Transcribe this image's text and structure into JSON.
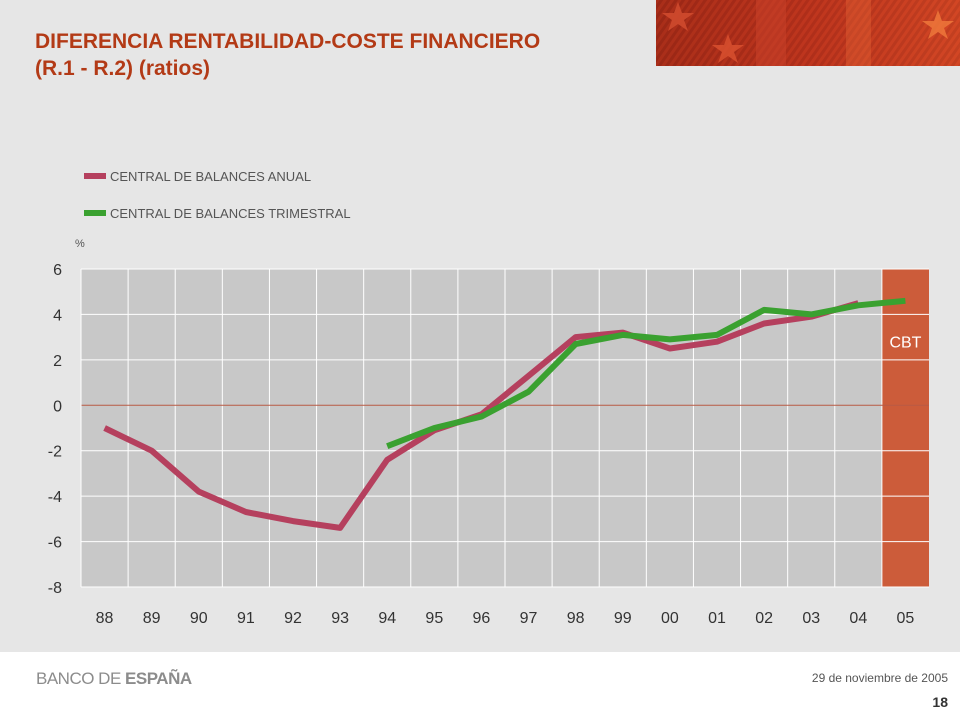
{
  "title_line1": "DIFERENCIA RENTABILIDAD-COSTE FINANCIERO",
  "title_line2": "(R.1 - R.2) (ratios)",
  "footer": {
    "logo_light": "BANCO DE ",
    "logo_bold": "ESPAÑA",
    "date": "29 de noviembre de 2005",
    "page": "18"
  },
  "chart_data": {
    "type": "line",
    "unit_label": "%",
    "categories": [
      "88",
      "89",
      "90",
      "91",
      "92",
      "93",
      "94",
      "95",
      "96",
      "97",
      "98",
      "99",
      "00",
      "01",
      "02",
      "03",
      "04",
      "05"
    ],
    "ylim": [
      -8,
      6
    ],
    "yticks": [
      6,
      4,
      2,
      0,
      -2,
      -4,
      -6,
      -8
    ],
    "grid": true,
    "legend_position": "top-left",
    "shaded_region": {
      "category": "05",
      "label": "CBT",
      "color": "#cc5c3a"
    },
    "series": [
      {
        "name": "CENTRAL DE BALANCES ANUAL",
        "color": "#b5405e",
        "values": [
          -1.0,
          -2.0,
          -3.8,
          -4.7,
          -5.1,
          -5.4,
          -2.4,
          -1.1,
          -0.4,
          1.3,
          3.0,
          3.2,
          2.5,
          2.8,
          3.6,
          3.9,
          4.5,
          null
        ]
      },
      {
        "name": "CENTRAL DE BALANCES TRIMESTRAL",
        "color": "#3aa130",
        "values": [
          null,
          null,
          null,
          null,
          null,
          null,
          -1.8,
          -1.0,
          -0.5,
          0.6,
          2.7,
          3.1,
          2.9,
          3.1,
          4.2,
          4.0,
          4.4,
          4.6
        ]
      }
    ]
  }
}
